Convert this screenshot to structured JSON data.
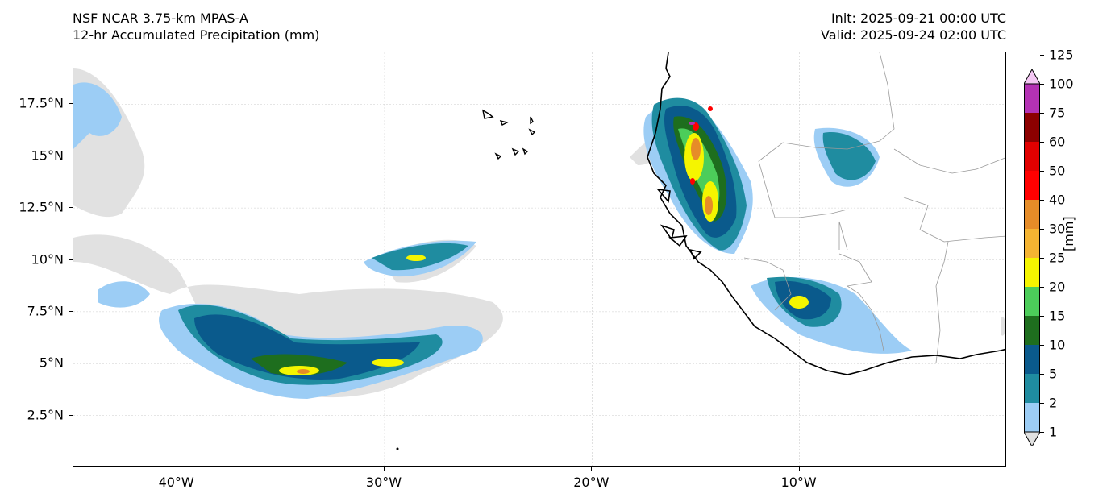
{
  "header": {
    "model": "NSF NCAR 3.75-km MPAS-A",
    "field": "12-hr Accumulated Precipitation (mm)",
    "init": "Init: 2025-09-21 00:00 UTC",
    "valid": "Valid: 2025-09-24 02:00 UTC"
  },
  "map": {
    "lon_range": [
      -45,
      0
    ],
    "lat_range": [
      0,
      20
    ],
    "x_ticks": [
      {
        "label": "40°W",
        "lon": -40
      },
      {
        "label": "30°W",
        "lon": -30
      },
      {
        "label": "20°W",
        "lon": -20
      },
      {
        "label": "10°W",
        "lon": -10
      }
    ],
    "y_ticks": [
      {
        "label": "17.5°N",
        "lat": 17.5
      },
      {
        "label": "15°N",
        "lat": 15
      },
      {
        "label": "12.5°N",
        "lat": 12.5
      },
      {
        "label": "10°N",
        "lat": 10
      },
      {
        "label": "7.5°N",
        "lat": 7.5
      },
      {
        "label": "5°N",
        "lat": 5
      },
      {
        "label": "2.5°N",
        "lat": 2.5
      }
    ],
    "grid": true,
    "coastline_color": "#000000",
    "border_color": "#9a9a9a"
  },
  "colorbar": {
    "unit_label": "[mm]",
    "levels": [
      "1",
      "2",
      "5",
      "10",
      "15",
      "20",
      "25",
      "30",
      "40",
      "50",
      "60",
      "75",
      "100",
      "125"
    ],
    "colors": [
      "#e1e1e1",
      "#9ccdf5",
      "#1f8ca0",
      "#0a5a8c",
      "#1e6e1e",
      "#4ccd5a",
      "#f5f500",
      "#f5b432",
      "#e68c28",
      "#ff0000",
      "#e10000",
      "#8c0000",
      "#b432b4",
      "#f5c8f5"
    ],
    "extend": "both"
  }
}
